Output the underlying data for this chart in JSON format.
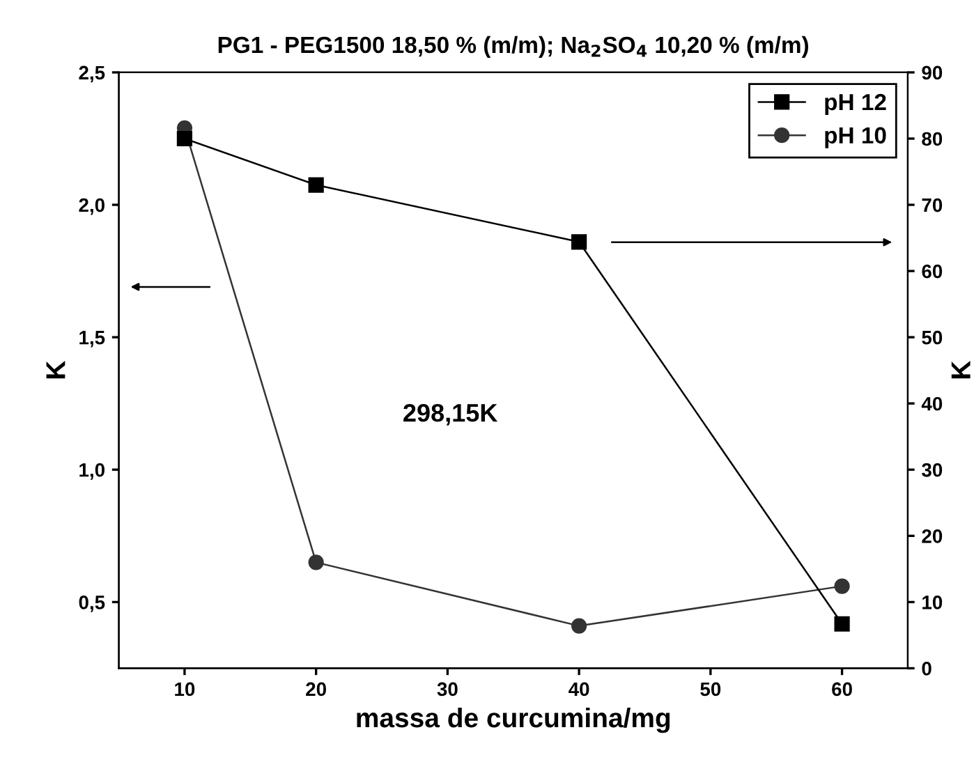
{
  "chart_data": {
    "type": "line",
    "title": "PG1 - PEG1500 18,50 % (m/m); Na$_{2}$SO$_{4}$ 10,20 % (m/m)",
    "xlabel": "massa de curcumina/mg",
    "ylabel": "K",
    "y2label": "K",
    "x": [
      10,
      20,
      40,
      60
    ],
    "series": [
      {
        "name": "pH 12",
        "color": "#000000",
        "values": [
          80,
          73,
          64.4,
          6.7
        ],
        "axis": "y2",
        "marker": "square"
      },
      {
        "name": "pH 10",
        "color": "#333333",
        "values": [
          2.29,
          0.65,
          0.41,
          0.56
        ],
        "marker": "circle"
      }
    ],
    "xlim": [
      5,
      65
    ],
    "xticks": [
      10,
      20,
      30,
      40,
      50,
      60
    ],
    "ylim": [
      0.25,
      2.5
    ],
    "yticks": [
      {
        "value": 0.5,
        "label": "0,5"
      },
      {
        "value": 1.0,
        "label": "1,0"
      },
      {
        "value": 1.5,
        "label": "1,5"
      },
      {
        "value": 2.0,
        "label": "2,0"
      },
      {
        "value": 2.5,
        "label": "2,5"
      }
    ],
    "y2lim": [
      0,
      90
    ],
    "y2ticks": [
      0,
      10,
      20,
      30,
      40,
      50,
      60,
      70,
      80,
      90
    ],
    "annotations": [
      "298,15K"
    ],
    "legend": "top right",
    "grid": false,
    "line_style": "solid"
  }
}
